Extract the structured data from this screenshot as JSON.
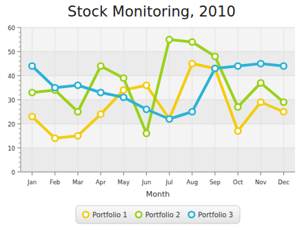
{
  "chart_data": {
    "type": "line",
    "title": "Stock Monitoring, 2010",
    "x_label": "Month",
    "categories": [
      "Jan",
      "Feb",
      "Mar",
      "Apr",
      "May",
      "Jun",
      "Jul",
      "Aug",
      "Sep",
      "Oct",
      "Nov",
      "Dec"
    ],
    "series": [
      {
        "name": "Portfolio 1",
        "color": "#f3cc10",
        "marker": "circle",
        "values": [
          23,
          14,
          15,
          24,
          34,
          36,
          22,
          45,
          43,
          17,
          29,
          25
        ]
      },
      {
        "name": "Portfolio 2",
        "color": "#9ad11a",
        "marker": "circle",
        "values": [
          33,
          34,
          25,
          44,
          39,
          16,
          55,
          54,
          48,
          27,
          37,
          29
        ]
      },
      {
        "name": "Portfolio 3",
        "color": "#2cb2d6",
        "marker": "circle",
        "values": [
          44,
          35,
          36,
          33,
          31,
          26,
          22,
          25,
          43,
          44,
          45,
          44
        ]
      }
    ],
    "ylim": [
      0,
      60
    ],
    "yticks": [
      0,
      10,
      20,
      30,
      40,
      50,
      60
    ],
    "grid": true,
    "legend": "bottom"
  }
}
